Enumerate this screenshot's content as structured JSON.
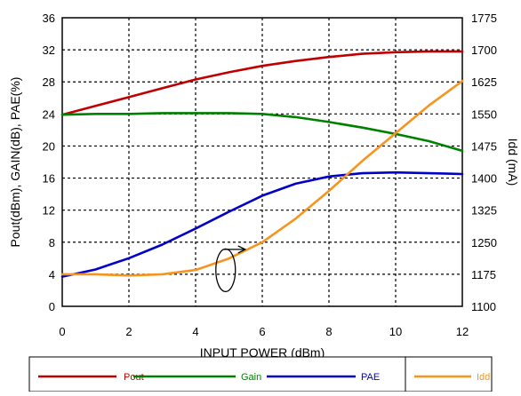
{
  "chart_data": {
    "type": "line",
    "xlabel": "INPUT POWER (dBm)",
    "ylabel": "Pout(dBm), GAIN(dB), PAE(%)",
    "y2label": "Idd (mA)",
    "xlim": [
      0,
      12
    ],
    "ylim": [
      0,
      36
    ],
    "y2lim": [
      1100,
      1775
    ],
    "x_ticks": [
      "0",
      "2",
      "4",
      "6",
      "8",
      "10",
      "12"
    ],
    "y_ticks": [
      "0",
      "4",
      "8",
      "12",
      "16",
      "20",
      "24",
      "28",
      "32",
      "36"
    ],
    "y2_ticks": [
      "1100",
      "1175",
      "1250",
      "1325",
      "1400",
      "1475",
      "1550",
      "1625",
      "1700",
      "1775"
    ],
    "grid": true,
    "legend_position": "bottom",
    "series": [
      {
        "name": "Pout",
        "axis": "left",
        "color": "#c00000",
        "x": [
          0,
          1,
          2,
          3,
          4,
          5,
          6,
          7,
          8,
          9,
          10,
          11,
          12
        ],
        "y": [
          23.9,
          25.0,
          26.1,
          27.2,
          28.3,
          29.2,
          30.0,
          30.6,
          31.1,
          31.5,
          31.7,
          31.8,
          31.8
        ]
      },
      {
        "name": "Gain",
        "axis": "left",
        "color": "#008000",
        "x": [
          0,
          1,
          2,
          3,
          4,
          5,
          6,
          7,
          8,
          9,
          10,
          11,
          12
        ],
        "y": [
          23.9,
          24.0,
          24.0,
          24.1,
          24.1,
          24.1,
          24.0,
          23.6,
          23.0,
          22.3,
          21.5,
          20.6,
          19.4
        ]
      },
      {
        "name": "PAE",
        "axis": "left",
        "color": "#0000c8",
        "x": [
          0,
          1,
          2,
          3,
          4,
          5,
          6,
          7,
          8,
          9,
          10,
          11,
          12
        ],
        "y": [
          3.7,
          4.6,
          6.0,
          7.7,
          9.7,
          11.8,
          13.8,
          15.3,
          16.2,
          16.6,
          16.7,
          16.6,
          16.5
        ]
      },
      {
        "name": "Idd",
        "axis": "right",
        "color": "#f7941d",
        "x": [
          0,
          1,
          2,
          3,
          4,
          5,
          6,
          7,
          8,
          9,
          10,
          11,
          12
        ],
        "y": [
          1175,
          1175,
          1172,
          1175,
          1185,
          1212,
          1250,
          1305,
          1370,
          1440,
          1505,
          1570,
          1627
        ]
      }
    ]
  }
}
